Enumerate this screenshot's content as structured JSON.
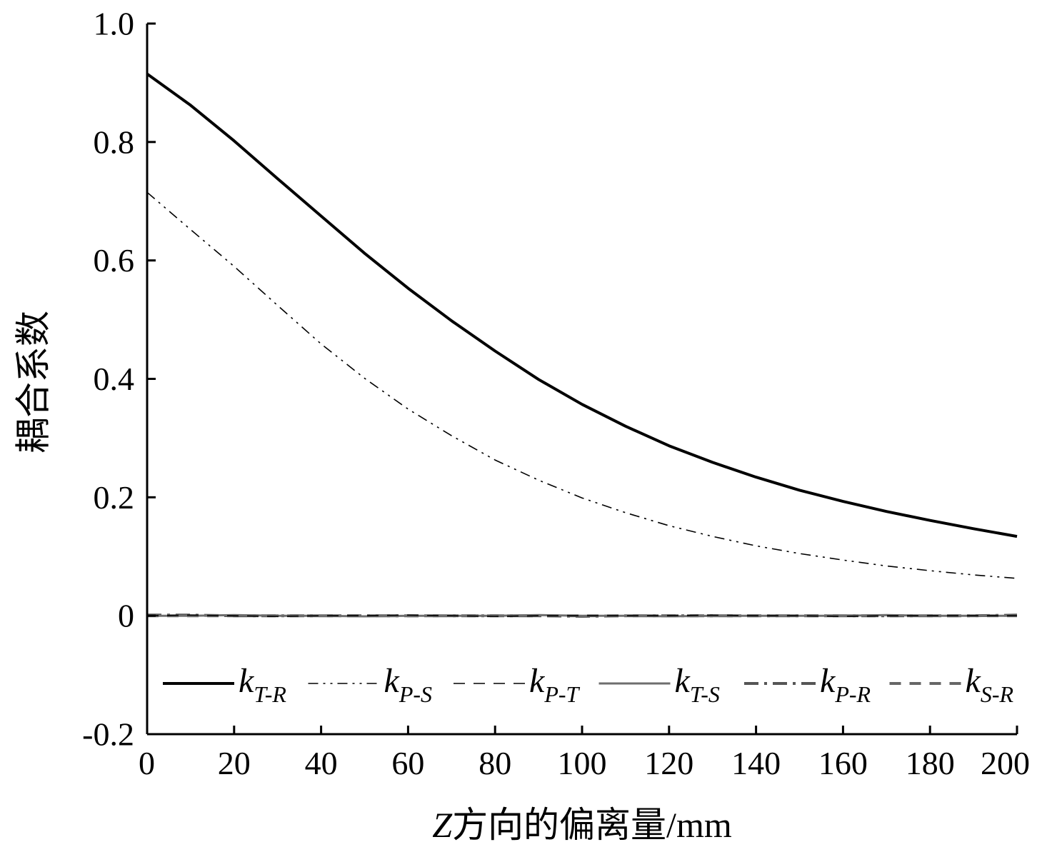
{
  "chart_data": {
    "type": "line",
    "xlabel_italic": "Z",
    "xlabel_rest": "方向的偏离量/mm",
    "ylabel": "耦合系数",
    "xlim": [
      0,
      200
    ],
    "ylim": [
      -0.2,
      1.0
    ],
    "xticks": [
      0,
      20,
      40,
      60,
      80,
      100,
      120,
      140,
      160,
      180,
      200
    ],
    "xtick_labels": [
      "0",
      "20",
      "40",
      "60",
      "80",
      "100",
      "120",
      "140",
      "160",
      "180",
      "200"
    ],
    "yticks": [
      -0.2,
      0,
      0.2,
      0.4,
      0.6,
      0.8,
      1.0
    ],
    "ytick_labels": [
      "-0.2",
      "0",
      "0.2",
      "0.4",
      "0.6",
      "0.8",
      "1.0"
    ],
    "legend_position": "bottom",
    "x": [
      0,
      10,
      20,
      30,
      40,
      50,
      60,
      70,
      80,
      90,
      100,
      110,
      120,
      130,
      140,
      150,
      160,
      170,
      180,
      190,
      200
    ],
    "series": [
      {
        "name": "k",
        "sub": "T-R",
        "color": "#000000",
        "dash": "solid",
        "weight": "thick",
        "values": [
          0.915,
          0.862,
          0.802,
          0.738,
          0.675,
          0.612,
          0.553,
          0.498,
          0.447,
          0.399,
          0.357,
          0.32,
          0.287,
          0.259,
          0.234,
          0.212,
          0.193,
          0.176,
          0.161,
          0.147,
          0.134
        ]
      },
      {
        "name": "k",
        "sub": "P-S",
        "color": "#000000",
        "dash": "dashdotdot",
        "weight": "thin",
        "values": [
          0.715,
          0.652,
          0.59,
          0.524,
          0.459,
          0.401,
          0.349,
          0.304,
          0.263,
          0.229,
          0.199,
          0.174,
          0.152,
          0.134,
          0.118,
          0.105,
          0.094,
          0.084,
          0.076,
          0.069,
          0.063
        ]
      },
      {
        "name": "k",
        "sub": "P-T",
        "color": "#000000",
        "dash": "dashed",
        "weight": "thin",
        "values": [
          0.0,
          0.001,
          0.0,
          -0.001,
          0.0,
          0.0,
          0.001,
          0.0,
          -0.001,
          0.0,
          0.0,
          0.0,
          0.0,
          0.001,
          0.0,
          0.0,
          -0.001,
          0.0,
          0.0,
          0.0,
          0.0
        ]
      },
      {
        "name": "k",
        "sub": "T-S",
        "color": "#6e6e6e",
        "dash": "solid",
        "weight": "medium",
        "values": [
          0.0,
          0.0,
          0.001,
          0.0,
          0.0,
          -0.001,
          0.0,
          0.0,
          0.0,
          0.001,
          0.0,
          0.0,
          -0.001,
          0.0,
          0.0,
          0.0,
          0.0,
          0.001,
          0.0,
          0.0,
          0.0
        ]
      },
      {
        "name": "k",
        "sub": "P-R",
        "color": "#555555",
        "dash": "dashdot",
        "weight": "thick",
        "values": [
          0.001,
          0.001,
          0.0,
          0.0,
          0.0,
          0.0,
          0.0,
          0.0,
          0.0,
          0.0,
          -0.001,
          0.0,
          0.0,
          0.0,
          0.0,
          0.0,
          0.0,
          0.0,
          0.0,
          0.0,
          0.001
        ]
      },
      {
        "name": "k",
        "sub": "S-R",
        "color": "#666666",
        "dash": "dashed",
        "weight": "thick",
        "values": [
          0.0,
          0.0,
          0.0,
          0.0,
          0.0,
          0.0,
          0.0,
          0.0,
          0.0,
          0.0,
          0.0,
          0.0,
          0.0,
          0.0,
          0.0,
          0.0,
          0.0,
          0.0,
          0.0,
          0.0,
          0.0
        ]
      }
    ]
  }
}
